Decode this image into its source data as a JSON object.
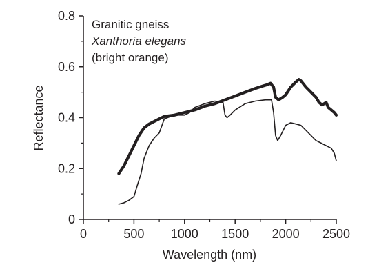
{
  "chart_data": {
    "type": "line",
    "xlabel": "Wavelength (nm)",
    "ylabel": "Reflectance",
    "xlim": [
      0,
      2500
    ],
    "ylim": [
      0,
      0.8
    ],
    "x_ticks": [
      0,
      500,
      1000,
      1500,
      2000,
      2500
    ],
    "x_tick_labels": [
      "0",
      "500",
      "1000",
      "1500",
      "2000",
      "2500"
    ],
    "y_ticks": [
      0,
      0.2,
      0.4,
      0.6,
      0.8
    ],
    "y_tick_labels": [
      "0",
      "0.2",
      "0.4",
      "0.6",
      "0.8"
    ],
    "grid": false,
    "annotations": [
      "Granitic gneiss",
      "Xanthoria elegans",
      "(bright orange)"
    ],
    "line_color": "#231f20",
    "series": [
      {
        "style": "thick",
        "x": [
          350,
          400,
          450,
          500,
          550,
          600,
          650,
          700,
          750,
          800,
          900,
          1000,
          1100,
          1200,
          1300,
          1400,
          1500,
          1600,
          1700,
          1780,
          1820,
          1850,
          1880,
          1900,
          1930,
          1970,
          2000,
          2050,
          2100,
          2130,
          2150,
          2200,
          2250,
          2300,
          2330,
          2360,
          2400,
          2420,
          2450,
          2480,
          2500
        ],
        "y": [
          0.18,
          0.21,
          0.25,
          0.29,
          0.33,
          0.36,
          0.375,
          0.385,
          0.395,
          0.405,
          0.41,
          0.42,
          0.43,
          0.445,
          0.455,
          0.47,
          0.485,
          0.5,
          0.515,
          0.525,
          0.53,
          0.535,
          0.52,
          0.48,
          0.47,
          0.48,
          0.49,
          0.52,
          0.54,
          0.55,
          0.545,
          0.52,
          0.5,
          0.48,
          0.46,
          0.45,
          0.46,
          0.44,
          0.43,
          0.42,
          0.41
        ]
      },
      {
        "style": "thin",
        "x": [
          350,
          400,
          450,
          500,
          530,
          570,
          600,
          620,
          650,
          700,
          750,
          800,
          900,
          1000,
          1050,
          1100,
          1200,
          1300,
          1380,
          1400,
          1420,
          1450,
          1500,
          1600,
          1700,
          1800,
          1860,
          1880,
          1900,
          1920,
          1950,
          2000,
          2050,
          2100,
          2150,
          2200,
          2250,
          2300,
          2350,
          2400,
          2450,
          2480,
          2500
        ],
        "y": [
          0.06,
          0.065,
          0.075,
          0.09,
          0.13,
          0.18,
          0.24,
          0.26,
          0.29,
          0.32,
          0.34,
          0.395,
          0.41,
          0.41,
          0.42,
          0.44,
          0.455,
          0.465,
          0.46,
          0.41,
          0.4,
          0.41,
          0.43,
          0.455,
          0.465,
          0.47,
          0.47,
          0.42,
          0.33,
          0.31,
          0.33,
          0.37,
          0.38,
          0.375,
          0.37,
          0.35,
          0.33,
          0.31,
          0.3,
          0.29,
          0.28,
          0.26,
          0.23
        ]
      }
    ]
  }
}
